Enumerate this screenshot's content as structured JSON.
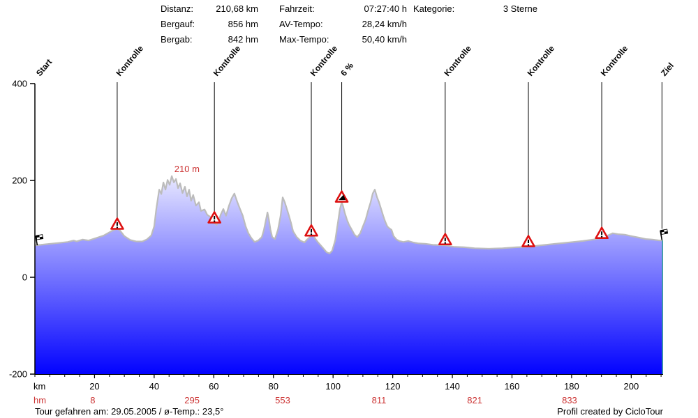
{
  "colors": {
    "text": "#000000",
    "accent_red": "#cc3333",
    "marker_red": "#dd1111",
    "profile_outline": "#bcbcbc",
    "fill_top": "#f6f6ff",
    "fill_bottom": "#0000ff",
    "end_edge": "#3a9f9f",
    "axis": "#000000"
  },
  "header": {
    "columns": [
      {
        "rows": [
          {
            "label": "Distanz:",
            "value": "210,68 km"
          },
          {
            "label": "Bergauf:",
            "value": "856 hm"
          },
          {
            "label": "Bergab:",
            "value": "842 hm"
          }
        ]
      },
      {
        "rows": [
          {
            "label": "Fahrzeit:",
            "value": "07:27:40 h"
          },
          {
            "label": "AV-Tempo:",
            "value": "28,24 km/h"
          },
          {
            "label": "Max-Tempo:",
            "value": "50,40 km/h"
          }
        ]
      },
      {
        "rows": [
          {
            "label": "Kategorie:",
            "value": "3 Sterne"
          }
        ]
      }
    ]
  },
  "chart_data": {
    "type": "area",
    "title": "",
    "xlabel": "km",
    "ylabel": "",
    "x_axis": {
      "label": "km",
      "min": 0,
      "max": 210.68,
      "major_ticks": [
        20,
        40,
        60,
        80,
        100,
        120,
        140,
        160,
        180,
        200
      ],
      "minor_step": 5
    },
    "y_axis": {
      "min": -200,
      "max": 400,
      "major_ticks": [
        400,
        200,
        0,
        -200
      ]
    },
    "hm_row": {
      "label": "hm",
      "entries": [
        {
          "value": "8",
          "km": 19.4
        },
        {
          "value": "295",
          "km": 52.7
        },
        {
          "value": "553",
          "km": 83.1
        },
        {
          "value": "811",
          "km": 115.4
        },
        {
          "value": "821",
          "km": 147.5
        },
        {
          "value": "833",
          "km": 179.3
        }
      ]
    },
    "peak_annotation": {
      "text": "210 m",
      "km": 51.0,
      "elev": 217
    },
    "markers": [
      {
        "type": "start-flag",
        "label": "Start",
        "km": 0.8,
        "elev": 66,
        "line": false
      },
      {
        "type": "kontrolle",
        "label": "Kontrolle",
        "km": 27.6,
        "elev": 100,
        "line": true
      },
      {
        "type": "kontrolle",
        "label": "Kontrolle",
        "km": 60.2,
        "elev": 113,
        "line": true
      },
      {
        "type": "kontrolle",
        "label": "Kontrolle",
        "km": 92.7,
        "elev": 86,
        "line": true
      },
      {
        "type": "steigung",
        "label": "6 %",
        "km": 102.9,
        "elev": 156,
        "line": true
      },
      {
        "type": "kontrolle",
        "label": "Kontrolle",
        "km": 137.6,
        "elev": 68,
        "line": true
      },
      {
        "type": "kontrolle",
        "label": "Kontrolle",
        "km": 165.5,
        "elev": 64,
        "line": true
      },
      {
        "type": "kontrolle",
        "label": "Kontrolle",
        "km": 190.1,
        "elev": 81,
        "line": true
      },
      {
        "type": "ziel-flag",
        "label": "Ziel",
        "km": 210.3,
        "elev": 77,
        "line": true
      }
    ],
    "profile": [
      [
        0,
        66
      ],
      [
        2,
        67
      ],
      [
        5,
        69
      ],
      [
        8,
        71
      ],
      [
        11,
        73
      ],
      [
        13,
        76
      ],
      [
        14,
        74
      ],
      [
        16,
        78
      ],
      [
        18,
        76
      ],
      [
        21,
        82
      ],
      [
        23,
        86
      ],
      [
        25,
        93
      ],
      [
        26.5,
        98
      ],
      [
        27.6,
        100
      ],
      [
        28.5,
        97
      ],
      [
        30,
        85
      ],
      [
        32,
        77
      ],
      [
        34,
        74
      ],
      [
        36,
        74
      ],
      [
        37.5,
        78
      ],
      [
        39,
        86
      ],
      [
        40,
        105
      ],
      [
        40.7,
        141
      ],
      [
        41.7,
        181
      ],
      [
        42.4,
        172
      ],
      [
        43.1,
        196
      ],
      [
        43.8,
        181
      ],
      [
        44.5,
        201
      ],
      [
        45.2,
        191
      ],
      [
        45.9,
        209
      ],
      [
        46.6,
        196
      ],
      [
        47.3,
        203
      ],
      [
        48,
        184
      ],
      [
        48.7,
        194
      ],
      [
        49.5,
        174
      ],
      [
        50.3,
        187
      ],
      [
        51,
        167
      ],
      [
        51.7,
        181
      ],
      [
        52.4,
        158
      ],
      [
        53.1,
        170
      ],
      [
        54,
        148
      ],
      [
        55,
        155
      ],
      [
        55.7,
        137
      ],
      [
        56.9,
        140
      ],
      [
        57.8,
        129
      ],
      [
        59,
        124
      ],
      [
        59.9,
        115
      ],
      [
        60.9,
        108
      ],
      [
        61.6,
        115
      ],
      [
        62.3,
        129
      ],
      [
        63.2,
        141
      ],
      [
        64.1,
        127
      ],
      [
        65.1,
        148
      ],
      [
        66,
        163
      ],
      [
        66.9,
        173
      ],
      [
        67.9,
        155
      ],
      [
        68.8,
        141
      ],
      [
        69.7,
        127
      ],
      [
        70.7,
        105
      ],
      [
        71.6,
        91
      ],
      [
        72.6,
        81
      ],
      [
        73.7,
        73
      ],
      [
        74.9,
        76
      ],
      [
        76.1,
        83
      ],
      [
        76.8,
        98
      ],
      [
        77.5,
        119
      ],
      [
        78,
        134
      ],
      [
        78.5,
        119
      ],
      [
        79,
        98
      ],
      [
        79.6,
        83
      ],
      [
        80.5,
        79
      ],
      [
        81.5,
        98
      ],
      [
        82.4,
        127
      ],
      [
        83.1,
        165
      ],
      [
        83.8,
        155
      ],
      [
        84.5,
        141
      ],
      [
        85.2,
        127
      ],
      [
        85.9,
        112
      ],
      [
        86.6,
        95
      ],
      [
        87.8,
        83
      ],
      [
        89,
        76
      ],
      [
        90.4,
        72
      ],
      [
        91.3,
        78
      ],
      [
        92.2,
        83
      ],
      [
        93.2,
        88
      ],
      [
        94.1,
        79
      ],
      [
        95,
        72
      ],
      [
        96.4,
        62
      ],
      [
        97.8,
        52
      ],
      [
        98.8,
        49
      ],
      [
        99.7,
        55
      ],
      [
        100.7,
        76
      ],
      [
        101.6,
        112
      ],
      [
        102.3,
        141
      ],
      [
        102.9,
        155
      ],
      [
        103.4,
        146
      ],
      [
        103.9,
        134
      ],
      [
        104.6,
        120
      ],
      [
        105.3,
        109
      ],
      [
        106.3,
        98
      ],
      [
        107.2,
        88
      ],
      [
        108.1,
        83
      ],
      [
        109.1,
        91
      ],
      [
        110,
        105
      ],
      [
        110.9,
        119
      ],
      [
        111.9,
        141
      ],
      [
        112.6,
        155
      ],
      [
        113.3,
        173
      ],
      [
        114,
        181
      ],
      [
        114.7,
        166
      ],
      [
        115.4,
        155
      ],
      [
        116.1,
        141
      ],
      [
        116.8,
        127
      ],
      [
        117.5,
        115
      ],
      [
        118.2,
        105
      ],
      [
        118.9,
        101
      ],
      [
        119.6,
        98
      ],
      [
        120.3,
        85
      ],
      [
        121.3,
        78
      ],
      [
        122.2,
        75
      ],
      [
        123.6,
        73
      ],
      [
        125.2,
        75
      ],
      [
        126.9,
        72
      ],
      [
        128.7,
        70
      ],
      [
        131.1,
        69
      ],
      [
        133.4,
        67
      ],
      [
        137.6,
        66
      ],
      [
        140.4,
        63
      ],
      [
        144,
        62
      ],
      [
        147.5,
        60
      ],
      [
        152.2,
        59
      ],
      [
        156.8,
        60
      ],
      [
        161.5,
        62
      ],
      [
        165.5,
        63
      ],
      [
        169.7,
        66
      ],
      [
        174.4,
        69
      ],
      [
        179.1,
        72
      ],
      [
        183.8,
        75
      ],
      [
        187.3,
        78
      ],
      [
        190.1,
        81
      ],
      [
        192,
        86
      ],
      [
        193.8,
        91
      ],
      [
        195.5,
        89
      ],
      [
        197.8,
        88
      ],
      [
        200.1,
        85
      ],
      [
        202.5,
        82
      ],
      [
        204.8,
        79
      ],
      [
        207.1,
        78
      ],
      [
        209.5,
        76
      ],
      [
        210.68,
        76
      ]
    ]
  },
  "footer": {
    "left": "Tour gefahren am: 29.05.2005  /  ø-Temp.: 23,5°",
    "right": "Profil created by CicloTour"
  }
}
